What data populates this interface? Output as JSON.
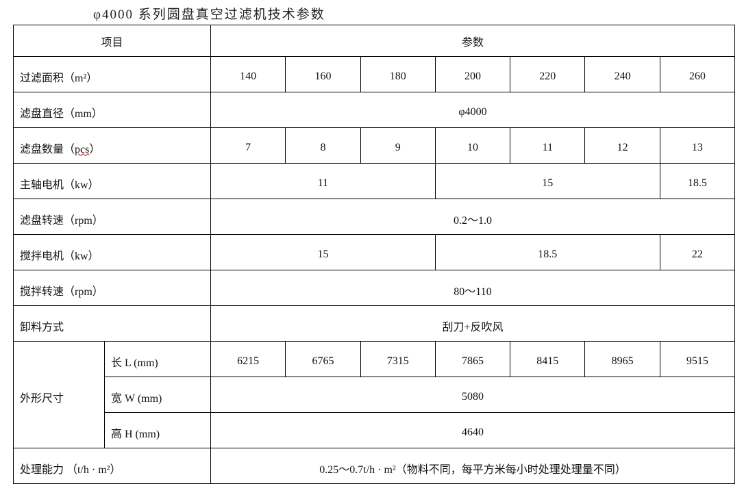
{
  "title": "φ4000 系列圆盘真空过滤机技术参数",
  "header": {
    "item": "项目",
    "params": "参数"
  },
  "rows": {
    "area": {
      "label": "过滤面积（m²）",
      "values": [
        "140",
        "160",
        "180",
        "200",
        "220",
        "240",
        "260"
      ]
    },
    "diameter": {
      "label": "滤盘直径（mm）",
      "value": "φ4000"
    },
    "count": {
      "label": "滤盘数量（",
      "unit": "pcs",
      "label_end": "）",
      "values": [
        "7",
        "8",
        "9",
        "10",
        "11",
        "12",
        "13"
      ]
    },
    "spindle_motor": {
      "label": "主轴电机（kw）",
      "values": [
        "11",
        "15",
        "18.5"
      ]
    },
    "disc_speed": {
      "label": "滤盘转速（rpm）",
      "value": "0.2～1.0"
    },
    "stir_motor": {
      "label": "搅拌电机（kw）",
      "values": [
        "15",
        "18.5",
        "22"
      ]
    },
    "stir_speed": {
      "label": "搅拌转速（rpm）",
      "value": "80～110"
    },
    "discharge": {
      "label": "卸料方式",
      "value": "刮刀+反吹风"
    },
    "dimensions": {
      "label": "外形尺寸",
      "length": {
        "label": "长 L (mm)",
        "values": [
          "6215",
          "6765",
          "7315",
          "7865",
          "8415",
          "8965",
          "9515"
        ]
      },
      "width": {
        "label": "宽 W (mm)",
        "value": "5080"
      },
      "height": {
        "label": "高 H (mm)",
        "value": "4640"
      }
    },
    "capacity": {
      "label": "处理能力  （t/h · m²）",
      "value": "0.25～0.7t/h · m²（物料不同，每平方米每小时处理处理量不同）"
    }
  }
}
